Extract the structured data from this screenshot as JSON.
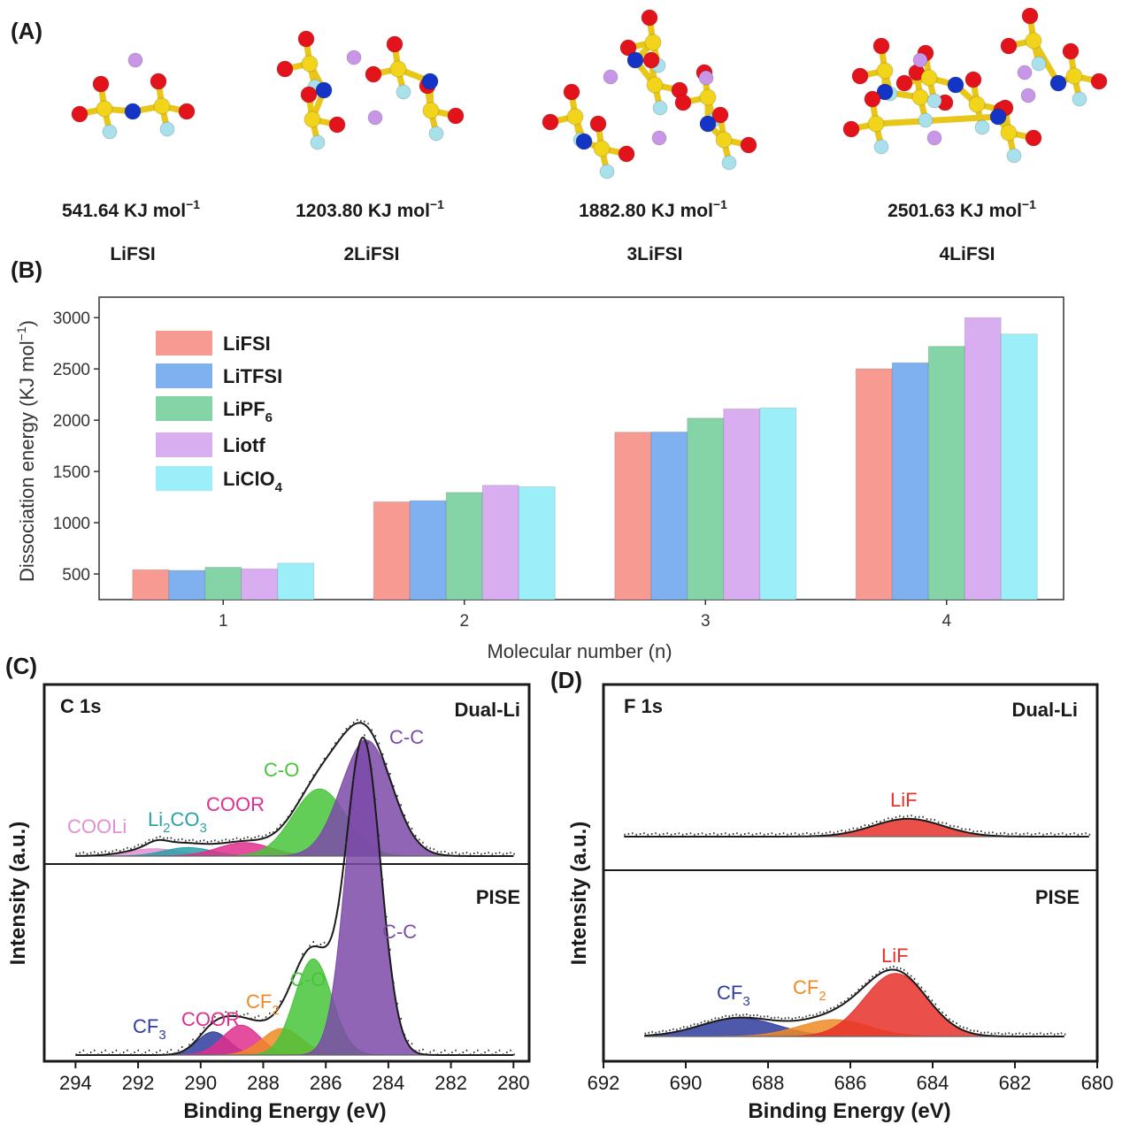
{
  "panel_labels": {
    "a": "(A)",
    "b": "(B)",
    "c": "(C)",
    "d": "(D)"
  },
  "colors": {
    "LiFSI": "#f79a92",
    "LiTFSI": "#7fb0f0",
    "LiPF6": "#84d4a8",
    "Liotf": "#d8aef0",
    "LiClO4": "#9ceef8",
    "purple": "#7c4aa8",
    "green": "#47c43a",
    "pink": "#e02f8d",
    "teal": "#2aa0a8",
    "lightpink": "#e38fd0",
    "navy": "#303c9c",
    "orange": "#f08a25",
    "red": "#e8302a"
  },
  "panel_a": {
    "structures": [
      {
        "energy_value": "541.64",
        "energy_unit": "KJ mol",
        "energy_sup": "−1",
        "name": "LiFSI"
      },
      {
        "energy_value": "1203.80",
        "energy_unit": "KJ mol",
        "energy_sup": "−1",
        "name": "2LiFSI"
      },
      {
        "energy_value": "1882.80",
        "energy_unit": "KJ mol",
        "energy_sup": "−1",
        "name": "3LiFSI"
      },
      {
        "energy_value": "2501.63",
        "energy_unit": "KJ mol",
        "energy_sup": "−1",
        "name": "4LiFSI"
      }
    ]
  },
  "chart_data": [
    {
      "id": "B",
      "type": "bar",
      "title": "",
      "xlabel": "Molecular number (n)",
      "ylabel_main": "Dissociation energy (KJ mol",
      "ylabel_sup": "−1",
      "ylabel_end": ")",
      "categories": [
        "1",
        "2",
        "3",
        "4"
      ],
      "ylim": [
        250,
        3200
      ],
      "yticks": [
        500,
        1000,
        1500,
        2000,
        2500,
        3000
      ],
      "series": [
        {
          "name": "LiFSI",
          "label_main": "LiFSI",
          "label_sub": "",
          "values": [
            541.64,
            1203.8,
            1882.8,
            2501.63
          ]
        },
        {
          "name": "LiTFSI",
          "label_main": "LiTFSI",
          "label_sub": "",
          "values": [
            535,
            1215,
            1885,
            2560
          ]
        },
        {
          "name": "LiPF6",
          "label_main": "LiPF",
          "label_sub": "6",
          "values": [
            565,
            1295,
            2020,
            2720
          ]
        },
        {
          "name": "Liotf",
          "label_main": "Liotf",
          "label_sub": "",
          "values": [
            550,
            1365,
            2110,
            3000
          ]
        },
        {
          "name": "LiClO4",
          "label_main": "LiClO",
          "label_sub": "4",
          "values": [
            605,
            1350,
            2120,
            2840
          ]
        }
      ],
      "legend": "top-left"
    },
    {
      "id": "C",
      "type": "line",
      "title": "C 1s",
      "xlabel": "Binding Energy (eV)",
      "ylabel": "Intensity (a.u.)",
      "xlim": [
        295,
        279.5
      ],
      "xticks": [
        294,
        292,
        290,
        288,
        286,
        284,
        282,
        280
      ],
      "subplots": [
        {
          "label": "Dual-Li",
          "background_fit": [
            [
              294,
              0.02
            ],
            [
              292,
              0.07
            ],
            [
              290,
              0.09
            ],
            [
              288,
              0.17
            ],
            [
              287,
              0.27
            ],
            [
              286.5,
              0.47
            ],
            [
              285.8,
              0.75
            ],
            [
              285.2,
              0.95
            ],
            [
              284.9,
              1.0
            ],
            [
              284.4,
              0.93
            ],
            [
              283.5,
              0.45
            ],
            [
              282.5,
              0.08
            ],
            [
              281.5,
              0.01
            ],
            [
              280,
              0.0
            ]
          ],
          "peaks": [
            {
              "name": "COOLi",
              "center": 291.5,
              "height": 0.06,
              "fwhm": 2.0,
              "color": "lightpink"
            },
            {
              "name": "Li2CO3",
              "center": 290.4,
              "height": 0.07,
              "fwhm": 1.8,
              "color": "teal"
            },
            {
              "name": "COOR",
              "center": 288.6,
              "height": 0.11,
              "fwhm": 2.0,
              "color": "pink"
            },
            {
              "name": "C-O",
              "center": 286.2,
              "height": 0.55,
              "fwhm": 2.0,
              "color": "green"
            },
            {
              "name": "C-C",
              "center": 284.7,
              "height": 0.95,
              "fwhm": 1.9,
              "color": "purple"
            }
          ],
          "labels": [
            {
              "text": "COOLi",
              "sub": "",
              "tail": "",
              "color": "lightpink"
            },
            {
              "text": "Li",
              "sub": "2",
              "tail": "CO",
              "sub2": "3",
              "color": "teal"
            },
            {
              "text": "COOR",
              "sub": "",
              "tail": "",
              "color": "pink"
            },
            {
              "text": "C-O",
              "sub": "",
              "tail": "",
              "color": "green"
            },
            {
              "text": "C-C",
              "sub": "",
              "tail": "",
              "color": "purple"
            }
          ]
        },
        {
          "label": "PISE",
          "peaks": [
            {
              "name": "CF3",
              "center": 289.6,
              "height": 0.07,
              "fwhm": 1.2,
              "color": "navy"
            },
            {
              "name": "COOR",
              "center": 288.7,
              "height": 0.09,
              "fwhm": 1.4,
              "color": "pink"
            },
            {
              "name": "CF2",
              "center": 287.4,
              "height": 0.08,
              "fwhm": 1.5,
              "color": "orange"
            },
            {
              "name": "C-O",
              "center": 286.4,
              "height": 0.29,
              "fwhm": 1.4,
              "color": "green"
            },
            {
              "name": "C-C",
              "center": 284.8,
              "height": 0.95,
              "fwhm": 1.3,
              "color": "purple"
            }
          ],
          "labels": [
            {
              "text": "CF",
              "sub": "3",
              "color": "navy"
            },
            {
              "text": "COOR",
              "sub": "",
              "color": "pink"
            },
            {
              "text": "CF",
              "sub": "2",
              "color": "orange"
            },
            {
              "text": "C-O",
              "sub": "",
              "color": "green"
            },
            {
              "text": "C-C",
              "sub": "",
              "color": "purple"
            }
          ]
        }
      ]
    },
    {
      "id": "D",
      "type": "line",
      "title": "F 1s",
      "xlabel": "Binding Energy (eV)",
      "ylabel": "Intensity (a.u.)",
      "xlim": [
        692,
        680
      ],
      "xticks": [
        692,
        690,
        688,
        686,
        684,
        682,
        680
      ],
      "subplots": [
        {
          "label": "Dual-Li",
          "peaks": [
            {
              "name": "LiF",
              "center": 684.6,
              "height": 0.18,
              "fwhm": 2.0,
              "color": "red"
            }
          ],
          "labels": [
            {
              "text": "LiF",
              "sub": "",
              "color": "red"
            }
          ]
        },
        {
          "label": "PISE",
          "peaks": [
            {
              "name": "CF3",
              "center": 688.7,
              "height": 0.22,
              "fwhm": 2.2,
              "color": "navy"
            },
            {
              "name": "CF2",
              "center": 686.4,
              "height": 0.2,
              "fwhm": 2.0,
              "color": "orange"
            },
            {
              "name": "LiF",
              "center": 684.9,
              "height": 0.75,
              "fwhm": 1.8,
              "color": "red"
            }
          ],
          "labels": [
            {
              "text": "CF",
              "sub": "3",
              "color": "navy"
            },
            {
              "text": "CF",
              "sub": "2",
              "color": "orange"
            },
            {
              "text": "LiF",
              "sub": "",
              "color": "red"
            }
          ]
        }
      ]
    }
  ]
}
